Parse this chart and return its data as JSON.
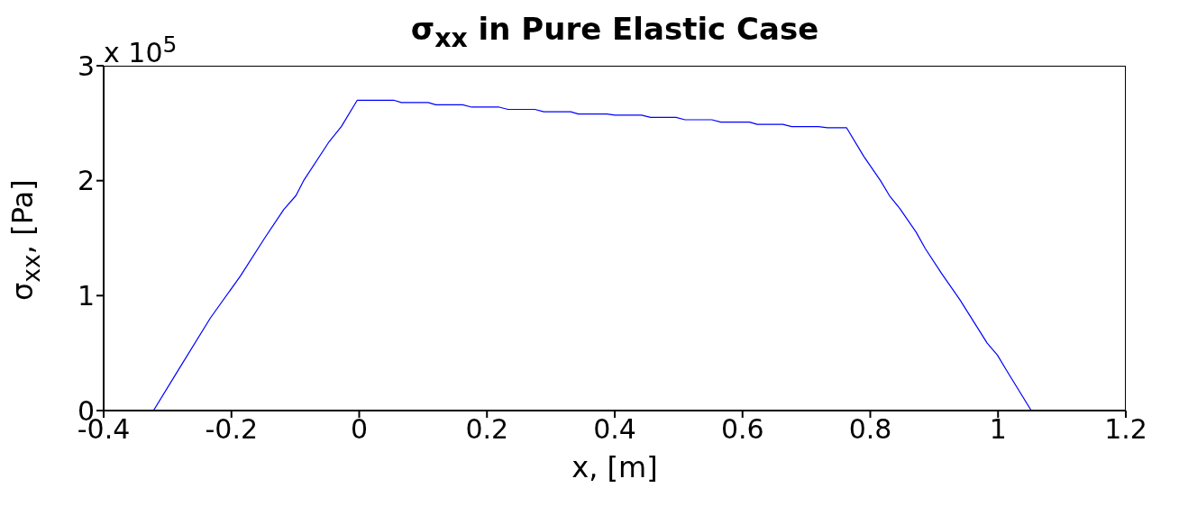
{
  "chart_data": {
    "type": "line",
    "title": "σ$_{xx}$ in Pure Elastic Case",
    "xlabel": "x, [m]",
    "ylabel": "σ$_{xx}$, [Pa]",
    "annotations": [
      "x 10$^{5}$"
    ],
    "x": [
      -0.322,
      -0.285,
      -0.233,
      -0.186,
      -0.148,
      -0.118,
      -0.099,
      -0.087,
      -0.047,
      -0.028,
      -0.003,
      0.054,
      0.066,
      0.108,
      0.12,
      0.162,
      0.176,
      0.219,
      0.233,
      0.275,
      0.289,
      0.331,
      0.343,
      0.388,
      0.4,
      0.442,
      0.456,
      0.496,
      0.51,
      0.552,
      0.566,
      0.611,
      0.623,
      0.663,
      0.677,
      0.719,
      0.733,
      0.763,
      0.79,
      0.816,
      0.83,
      0.846,
      0.872,
      0.886,
      0.912,
      0.94,
      0.983,
      0.999,
      1.013,
      1.052
    ],
    "series": [
      {
        "color": "#0000ff",
        "values": [
          0,
          0.336,
          0.805,
          1.17,
          1.5,
          1.75,
          1.87,
          2.0,
          2.34,
          2.47,
          2.7,
          2.7,
          2.68,
          2.68,
          2.66,
          2.66,
          2.64,
          2.64,
          2.62,
          2.62,
          2.6,
          2.6,
          2.58,
          2.58,
          2.57,
          2.57,
          2.55,
          2.55,
          2.53,
          2.53,
          2.51,
          2.51,
          2.49,
          2.49,
          2.47,
          2.47,
          2.46,
          2.46,
          2.21,
          2.0,
          1.87,
          1.76,
          1.55,
          1.41,
          1.19,
          0.966,
          0.587,
          0.483,
          0.352,
          0
        ]
      }
    ],
    "xlim": [
      -0.4,
      1.2
    ],
    "xticks": [
      -0.4,
      -0.2,
      0,
      0.2,
      0.4,
      0.6,
      0.8,
      1,
      1.2
    ],
    "ylim": [
      0,
      3
    ],
    "yticks": [
      0,
      1,
      2,
      3
    ]
  }
}
